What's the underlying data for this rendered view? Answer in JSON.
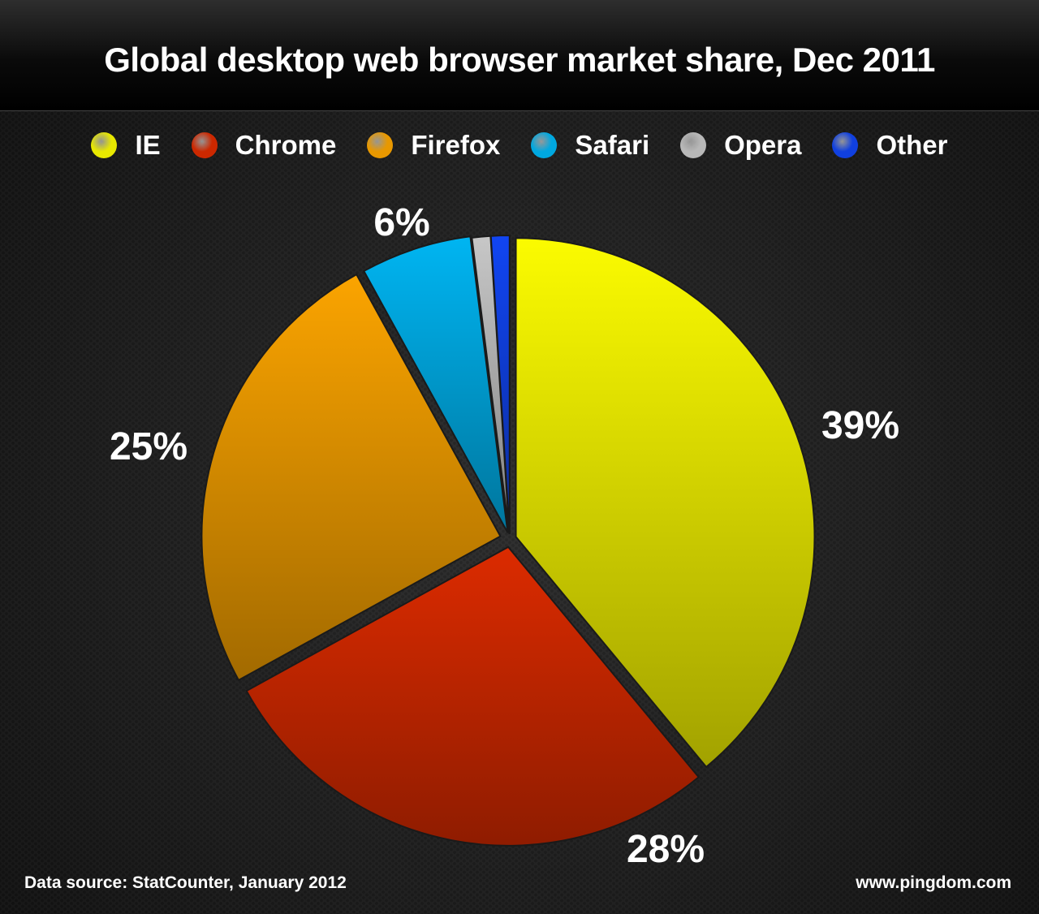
{
  "chart_data": {
    "type": "pie",
    "title": "Global desktop web browser market share, Dec 2011",
    "legend_position": "top",
    "categories": [
      "IE",
      "Chrome",
      "Firefox",
      "Safari",
      "Opera",
      "Other"
    ],
    "values": [
      39,
      28,
      25,
      6,
      1,
      1
    ],
    "data_labels": [
      "39%",
      "28%",
      "25%",
      "6%",
      "",
      ""
    ],
    "colors": [
      "#e8e800",
      "#cc2800",
      "#e89800",
      "#00a8e0",
      "#b8b8b8",
      "#1040e0"
    ],
    "source": "Data source: StatCounter, January 2012",
    "credit": "www.pingdom.com"
  }
}
